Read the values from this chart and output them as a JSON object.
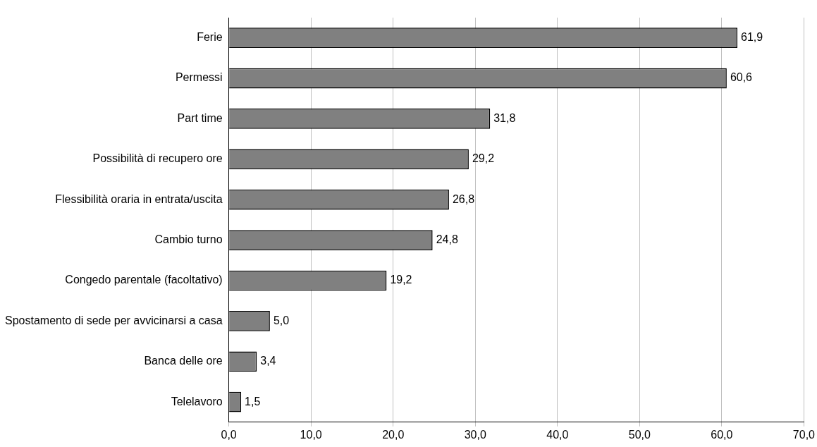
{
  "chart_data": {
    "type": "bar",
    "orientation": "horizontal",
    "categories": [
      "Ferie",
      "Permessi",
      "Part time",
      "Possibilità di recupero ore",
      "Flessibilità oraria in entrata/uscita",
      "Cambio turno",
      "Congedo parentale (facoltativo)",
      "Spostamento di sede per avvicinarsi a casa",
      "Banca delle ore",
      "Telelavoro"
    ],
    "values": [
      61.9,
      60.6,
      31.8,
      29.2,
      26.8,
      24.8,
      19.2,
      5.0,
      3.4,
      1.5
    ],
    "value_labels": [
      "61,9",
      "60,6",
      "31,8",
      "29,2",
      "26,8",
      "24,8",
      "19,2",
      "5,0",
      "3,4",
      "1,5"
    ],
    "color": "#808080",
    "xlim": [
      0,
      70
    ],
    "xticks": [
      {
        "value": 0,
        "label": "0,0"
      },
      {
        "value": 10,
        "label": "10,0"
      },
      {
        "value": 20,
        "label": "20,0"
      },
      {
        "value": 30,
        "label": "30,0"
      },
      {
        "value": 40,
        "label": "40,0"
      },
      {
        "value": 50,
        "label": "50,0"
      },
      {
        "value": 60,
        "label": "60,0"
      },
      {
        "value": 70,
        "label": "70,0"
      }
    ],
    "grid": "x",
    "legend": false
  }
}
